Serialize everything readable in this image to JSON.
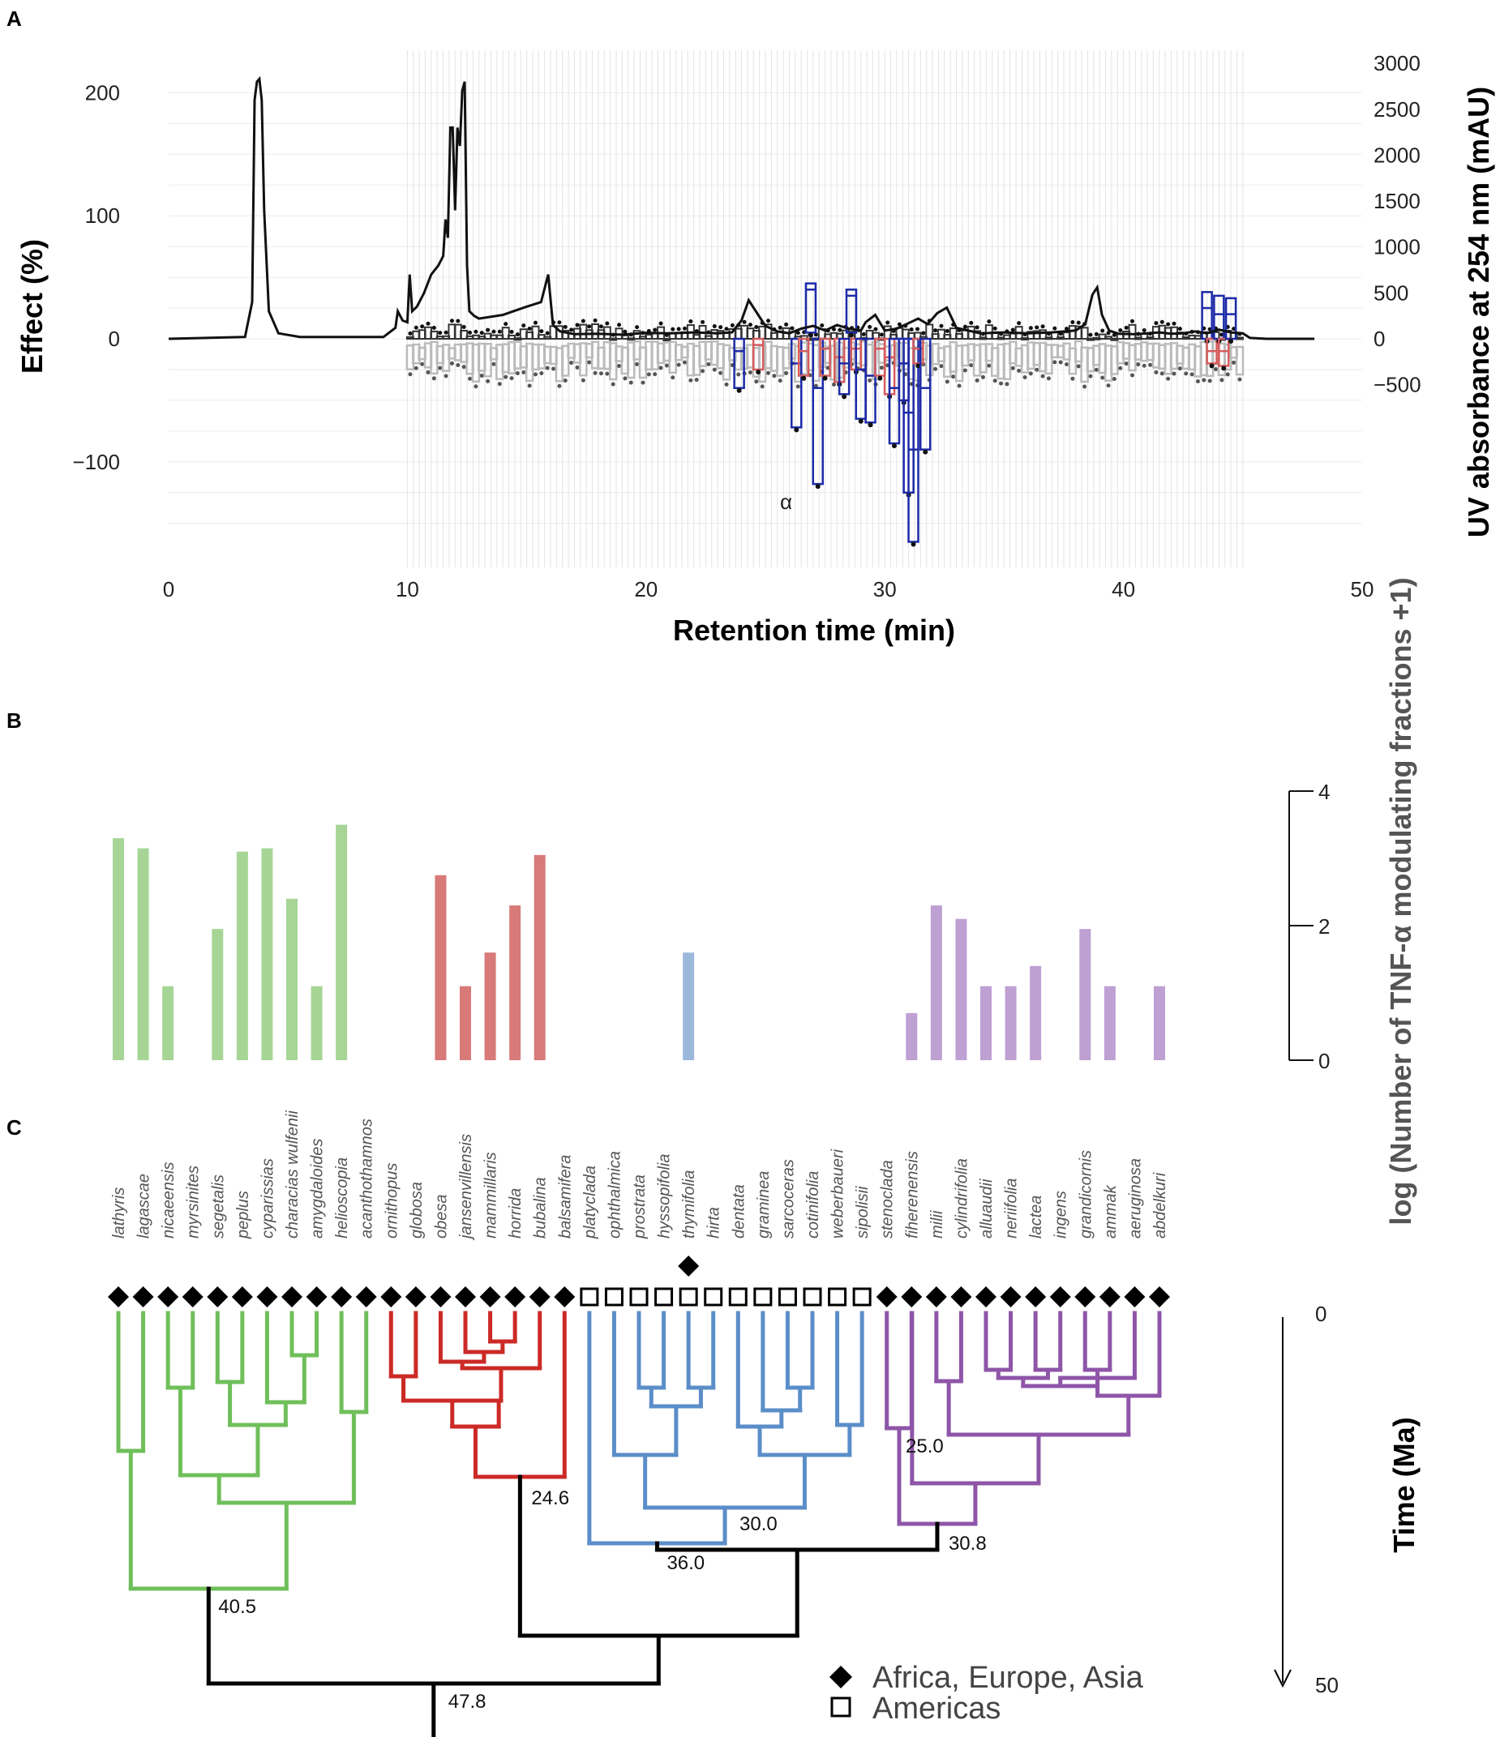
{
  "chart_data": [
    {
      "panel": "A",
      "type": "line",
      "title": "",
      "xlabel": "Retention time (min)",
      "ylabel": "Effect (%)",
      "y2label": "UV absorbance at 254 nm (mAU)",
      "xticks": [
        0,
        10,
        20,
        30,
        40,
        50
      ],
      "yticks": [
        200,
        100,
        0,
        -100
      ],
      "y2ticks": [
        3000,
        2500,
        2000,
        1500,
        1000,
        500,
        0,
        -500
      ],
      "xlim": [
        0,
        50
      ],
      "ylim": [
        -165,
        210
      ],
      "y2lim": [
        -500,
        3000
      ],
      "annotation": "α",
      "series": [
        {
          "name": "UV absorbance at 254 nm",
          "axis": "right",
          "color": "#111111",
          "x": [
            0,
            3.2,
            3.5,
            3.6,
            3.7,
            3.8,
            3.9,
            4.0,
            4.2,
            4.6,
            5.5,
            9.0,
            9.5,
            9.6,
            9.8,
            10.0,
            10.1,
            10.2,
            10.4,
            10.7,
            11.0,
            11.3,
            11.5,
            11.6,
            11.7,
            11.8,
            11.9,
            12.0,
            12.1,
            12.2,
            12.3,
            12.4,
            12.5,
            12.6,
            12.8,
            13.0,
            14.0,
            15.0,
            15.6,
            15.9,
            16.1,
            16.4,
            17,
            18,
            19,
            20,
            21,
            22,
            23,
            23.6,
            24.0,
            24.3,
            24.6,
            25.0,
            25.5,
            26,
            26.5,
            27,
            27.5,
            28,
            28.5,
            29,
            29.2,
            29.6,
            30,
            30.5,
            31,
            31.4,
            31.8,
            32.2,
            32.6,
            33,
            34,
            35,
            36,
            37,
            38,
            38.4,
            38.7,
            38.9,
            39.1,
            39.4,
            39.8,
            40.5,
            41,
            41.5,
            42,
            42.5,
            43,
            43.5,
            44,
            44.5,
            45.0,
            45.3,
            46,
            48
          ],
          "y": [
            0,
            20,
            400,
            2600,
            2800,
            2830,
            2600,
            1400,
            300,
            60,
            20,
            20,
            120,
            300,
            200,
            180,
            700,
            300,
            350,
            500,
            700,
            800,
            900,
            1300,
            1100,
            2300,
            2300,
            1400,
            2300,
            2100,
            2700,
            2800,
            800,
            300,
            250,
            220,
            260,
            350,
            400,
            700,
            150,
            80,
            50,
            55,
            45,
            65,
            60,
            70,
            60,
            70,
            200,
            420,
            300,
            140,
            80,
            60,
            110,
            140,
            90,
            150,
            110,
            90,
            180,
            260,
            90,
            110,
            170,
            220,
            160,
            280,
            340,
            120,
            60,
            70,
            60,
            70,
            90,
            160,
            480,
            560,
            260,
            90,
            55,
            50,
            60,
            70,
            55,
            60,
            80,
            60,
            100,
            70,
            60,
            10,
            0,
            0
          ]
        },
        {
          "name": "Effect (%)",
          "axis": "left",
          "type": "box",
          "note": "boxplots per fraction; gray = not significant, red/blue = TNF-α modulating",
          "fractions": [
            {
              "x": 23.9,
              "median": -10,
              "min": -40,
              "color": "blue"
            },
            {
              "x": 24.7,
              "median": -5,
              "min": -25,
              "color": "red"
            },
            {
              "x": 26.3,
              "median": -20,
              "min": -72,
              "color": "blue"
            },
            {
              "x": 26.6,
              "median": -10,
              "min": -30,
              "color": "red"
            },
            {
              "x": 26.9,
              "median": 40,
              "min": 5,
              "max": 45,
              "color": "blue"
            },
            {
              "x": 27.2,
              "median": -40,
              "min": -118,
              "color": "blue"
            },
            {
              "x": 27.5,
              "median": -8,
              "min": -30,
              "color": "red"
            },
            {
              "x": 28.1,
              "median": -15,
              "min": -35,
              "color": "red"
            },
            {
              "x": 28.3,
              "median": -20,
              "min": -45,
              "color": "blue"
            },
            {
              "x": 28.6,
              "median": 35,
              "min": 5,
              "max": 40,
              "color": "blue"
            },
            {
              "x": 28.8,
              "median": -8,
              "min": -25,
              "color": "red"
            },
            {
              "x": 29.0,
              "median": -25,
              "min": -65,
              "color": "blue"
            },
            {
              "x": 29.4,
              "median": -30,
              "min": -68,
              "color": "blue"
            },
            {
              "x": 29.8,
              "median": -8,
              "min": -30,
              "color": "red"
            },
            {
              "x": 30.2,
              "median": -15,
              "min": -45,
              "color": "red"
            },
            {
              "x": 30.4,
              "median": -40,
              "min": -85,
              "color": "blue"
            },
            {
              "x": 30.8,
              "median": -20,
              "min": -50,
              "color": "blue"
            },
            {
              "x": 31.0,
              "median": -60,
              "min": -125,
              "color": "blue"
            },
            {
              "x": 31.2,
              "median": -90,
              "min": -165,
              "color": "blue"
            },
            {
              "x": 31.4,
              "median": -8,
              "min": -20,
              "color": "red"
            },
            {
              "x": 31.7,
              "median": -40,
              "min": -90,
              "color": "blue"
            },
            {
              "x": 43.5,
              "median": 25,
              "min": 0,
              "max": 38,
              "color": "blue"
            },
            {
              "x": 43.7,
              "median": -10,
              "min": -20,
              "color": "red"
            },
            {
              "x": 44.0,
              "median": 20,
              "min": 0,
              "max": 35,
              "color": "blue"
            },
            {
              "x": 44.2,
              "median": -10,
              "min": -22,
              "color": "red"
            },
            {
              "x": 44.5,
              "median": 20,
              "min": 0,
              "max": 33,
              "color": "blue"
            }
          ]
        }
      ]
    },
    {
      "panel": "B",
      "type": "bar",
      "ylabel": "log (Number of TNF-α modulating fractions +1)",
      "yticks": [
        4,
        2,
        0
      ],
      "ylim": [
        0,
        4
      ],
      "categories": [
        "lathyris",
        "lagascae",
        "nicaeensis",
        "myrsinites",
        "segetalis",
        "peplus",
        "cyparissias",
        "characias wulfenii",
        "amygdaloides",
        "helioscopia",
        "acanthothamnos",
        "ornithopus",
        "globosa",
        "obesa",
        "jansenvillensis",
        "mammillaris",
        "horrida",
        "bubalina",
        "balsamifera",
        "platyclada",
        "ophthalmica",
        "prostrata",
        "hyssopifolia",
        "thymifolia",
        "hirta",
        "dentata",
        "graminea",
        "sarcoceras",
        "cotinifolia",
        "weberbaueri",
        "sipolisii",
        "stenoclada",
        "fiherenensis",
        "milii",
        "cylindrifolia",
        "alluaudii",
        "neriifolia",
        "lactea",
        "ingens",
        "grandicornis",
        "ammak",
        "aeruginosa",
        "abdelkuri"
      ],
      "values": [
        3.3,
        3.15,
        1.1,
        0,
        1.95,
        3.1,
        3.15,
        2.4,
        1.1,
        3.5,
        0,
        0,
        0,
        2.75,
        1.1,
        1.6,
        2.3,
        3.05,
        0,
        0,
        0,
        0,
        0,
        1.6,
        0,
        0,
        0,
        0,
        0,
        0,
        0,
        0,
        0.7,
        2.3,
        2.1,
        1.1,
        1.1,
        1.4,
        0,
        1.95,
        1.1,
        0,
        1.1
      ],
      "clades": [
        "green",
        "green",
        "green",
        "green",
        "green",
        "green",
        "green",
        "green",
        "green",
        "green",
        "green",
        "red",
        "red",
        "red",
        "red",
        "red",
        "red",
        "red",
        "red",
        "blue",
        "blue",
        "blue",
        "blue",
        "blue",
        "blue",
        "blue",
        "blue",
        "blue",
        "blue",
        "blue",
        "blue",
        "purple",
        "purple",
        "purple",
        "purple",
        "purple",
        "purple",
        "purple",
        "purple",
        "purple",
        "purple",
        "purple",
        "purple"
      ]
    },
    {
      "panel": "C",
      "type": "tree",
      "ylabel": "Time (Ma)",
      "yticks": [
        0,
        50
      ],
      "node_ages": [
        "47.8",
        "40.5",
        "24.6",
        "36.0",
        "30.0",
        "30.8",
        "25.0"
      ],
      "distribution": [
        "diamond",
        "diamond",
        "diamond",
        "diamond",
        "diamond",
        "diamond",
        "diamond",
        "diamond",
        "diamond",
        "diamond",
        "diamond",
        "diamond",
        "diamond",
        "diamond",
        "diamond",
        "diamond",
        "diamond",
        "diamond",
        "diamond",
        "square",
        "square",
        "square",
        "square",
        "square",
        "square",
        "square",
        "square",
        "square",
        "square",
        "square",
        "square",
        "diamond",
        "diamond",
        "diamond",
        "diamond",
        "diamond",
        "diamond",
        "diamond",
        "diamond",
        "diamond",
        "diamond",
        "diamond",
        "diamond"
      ],
      "extra_marker": {
        "species": "thymifolia",
        "shape": "diamond"
      },
      "legend": [
        {
          "shape": "diamond",
          "label": "Africa, Europe, Asia"
        },
        {
          "shape": "square",
          "label": "Americas"
        }
      ]
    }
  ],
  "panel_labels": [
    "A",
    "B",
    "C"
  ],
  "colors": {
    "green": "#6fbf5a",
    "red": "#cc2a26",
    "blue": "#5b8ec9",
    "purple": "#8e55a8",
    "bar_green": "#a6d596",
    "bar_red": "#d77a78",
    "bar_blue": "#9cb9dc",
    "bar_purple": "#bea0d3",
    "box_blue": "#1c2aa8",
    "box_red": "#d65c5c",
    "box_gray": "#bbbbbb"
  }
}
